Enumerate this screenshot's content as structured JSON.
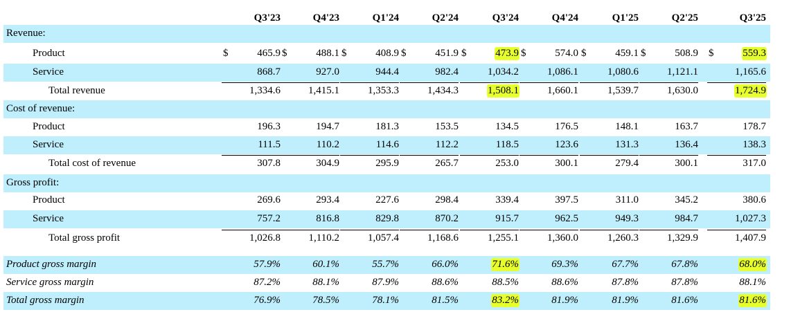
{
  "colors": {
    "band": "#bfeefc",
    "highlight": "#e8ff2e"
  },
  "columns": [
    "Q3'23",
    "Q4'23",
    "Q1'24",
    "Q2'24",
    "Q3'24",
    "Q4'24",
    "Q1'25",
    "Q2'25",
    "Q3'25"
  ],
  "rows": [
    {
      "label": "Revenue:",
      "values": []
    },
    {
      "label": "Product",
      "dollar": "$",
      "values": [
        "465.9",
        "488.1",
        "408.9",
        "451.9",
        "473.9",
        "574.0",
        "459.1",
        "508.9",
        "559.3"
      ]
    },
    {
      "label": "Service",
      "values": [
        "868.7",
        "927.0",
        "944.4",
        "982.4",
        "1,034.2",
        "1,086.1",
        "1,080.6",
        "1,121.1",
        "1,165.6"
      ]
    },
    {
      "label": "Total revenue",
      "values": [
        "1,334.6",
        "1,415.1",
        "1,353.3",
        "1,434.3",
        "1,508.1",
        "1,660.1",
        "1,539.7",
        "1,630.0",
        "1,724.9"
      ]
    },
    {
      "label": "Cost of revenue:",
      "values": []
    },
    {
      "label": "Product",
      "values": [
        "196.3",
        "194.7",
        "181.3",
        "153.5",
        "134.5",
        "176.5",
        "148.1",
        "163.7",
        "178.7"
      ]
    },
    {
      "label": "Service",
      "values": [
        "111.5",
        "110.2",
        "114.6",
        "112.2",
        "118.5",
        "123.6",
        "131.3",
        "136.4",
        "138.3"
      ]
    },
    {
      "label": "Total cost of revenue",
      "values": [
        "307.8",
        "304.9",
        "295.9",
        "265.7",
        "253.0",
        "300.1",
        "279.4",
        "300.1",
        "317.0"
      ]
    },
    {
      "label": "Gross profit:",
      "values": []
    },
    {
      "label": "Product",
      "values": [
        "269.6",
        "293.4",
        "227.6",
        "298.4",
        "339.4",
        "397.5",
        "311.0",
        "345.2",
        "380.6"
      ]
    },
    {
      "label": "Service",
      "values": [
        "757.2",
        "816.8",
        "829.8",
        "870.2",
        "915.7",
        "962.5",
        "949.3",
        "984.7",
        "1,027.3"
      ]
    },
    {
      "label": "Total gross profit",
      "values": [
        "1,026.8",
        "1,110.2",
        "1,057.4",
        "1,168.6",
        "1,255.1",
        "1,360.0",
        "1,260.3",
        "1,329.9",
        "1,407.9"
      ]
    },
    {
      "label": "Product gross margin",
      "values": [
        "57.9%",
        "60.1%",
        "55.7%",
        "66.0%",
        "71.6%",
        "69.3%",
        "67.7%",
        "67.8%",
        "68.0%"
      ]
    },
    {
      "label": "Service gross margin",
      "values": [
        "87.2%",
        "88.1%",
        "87.9%",
        "88.6%",
        "88.5%",
        "88.6%",
        "87.8%",
        "87.8%",
        "88.1%"
      ]
    },
    {
      "label": "Total gross margin",
      "values": [
        "76.9%",
        "78.5%",
        "78.1%",
        "81.5%",
        "83.2%",
        "81.9%",
        "81.9%",
        "81.6%",
        "81.6%"
      ]
    }
  ]
}
